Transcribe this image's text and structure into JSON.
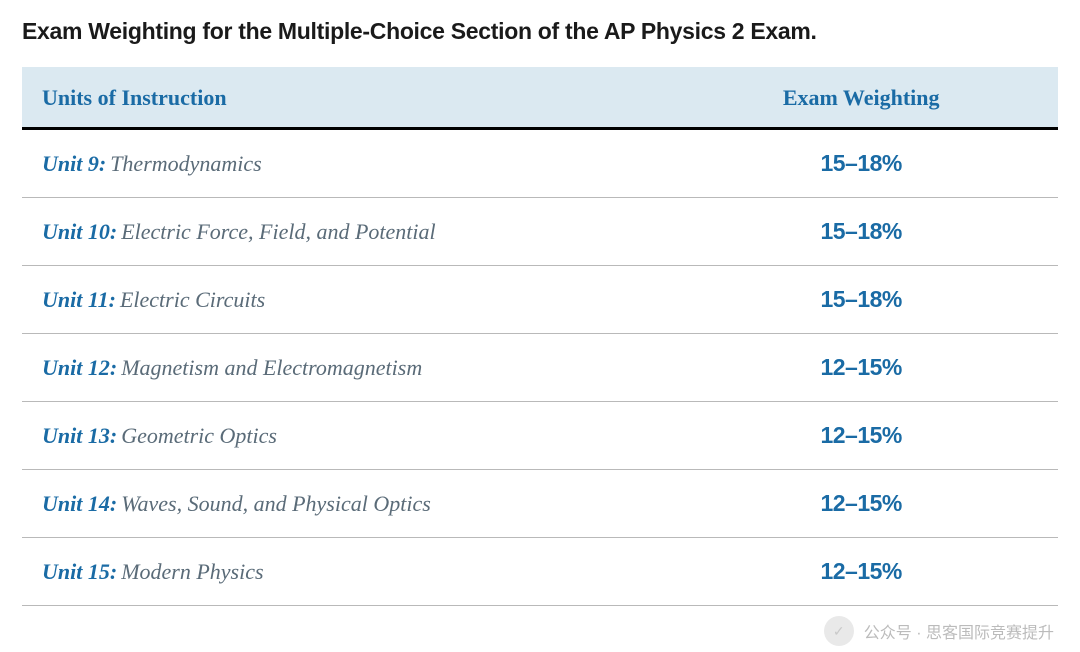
{
  "title": "Exam Weighting for the Multiple-Choice Section of the AP Physics 2 Exam.",
  "table": {
    "columns": [
      "Units of Instruction",
      "Exam Weighting"
    ],
    "header_bg": "#dbe9f1",
    "header_color": "#1a6ba5",
    "header_fontsize": 22,
    "header_border_bottom": "3px solid #000000",
    "row_border_color": "#b9b9b9",
    "unit_label_color": "#1a6ba5",
    "unit_name_color": "#5a6b78",
    "weight_color": "#1a6ba5",
    "cell_fontsize": 22,
    "rows": [
      {
        "unit": "Unit 9:",
        "name": "Thermodynamics",
        "weight": "15–18%"
      },
      {
        "unit": "Unit 10:",
        "name": "Electric Force, Field, and Potential",
        "weight": "15–18%"
      },
      {
        "unit": "Unit 11:",
        "name": "Electric Circuits",
        "weight": "15–18%"
      },
      {
        "unit": "Unit 12:",
        "name": "Magnetism and Electromagnetism",
        "weight": "12–15%"
      },
      {
        "unit": "Unit 13:",
        "name": "Geometric Optics",
        "weight": "12–15%"
      },
      {
        "unit": "Unit 14:",
        "name": "Waves, Sound, and Physical Optics",
        "weight": "12–15%"
      },
      {
        "unit": "Unit 15:",
        "name": "Modern Physics",
        "weight": "12–15%"
      }
    ]
  },
  "watermark": {
    "text": "公众号 · 思客国际竞赛提升",
    "icon_glyph": "✓"
  }
}
